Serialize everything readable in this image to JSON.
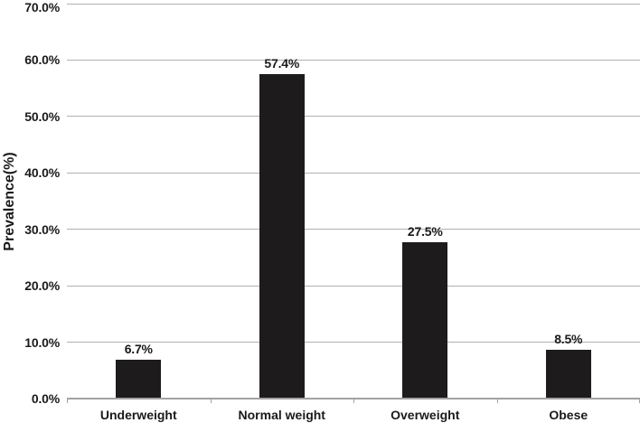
{
  "chart_data": {
    "type": "bar",
    "title": "",
    "categories": [
      "Underweight",
      "Normal weight",
      "Overweight",
      "Obese"
    ],
    "values": [
      6.7,
      57.4,
      27.5,
      8.5
    ],
    "data_labels": [
      "6.7%",
      "57.4%",
      "27.5%",
      "8.5%"
    ],
    "xlabel": "",
    "ylabel": "Prevalence(%)",
    "ylim": [
      0,
      70
    ],
    "ytick_step": 10,
    "ytick_labels": [
      "0.0%",
      "10.0%",
      "20.0%",
      "30.0%",
      "40.0%",
      "50.0%",
      "60.0%",
      "70.0%"
    ],
    "grid": true,
    "legend": false,
    "colors": {
      "bar": "#1d1b1b",
      "gridline": "#b0b0b0",
      "axis": "#a3a3a3",
      "text": "#1a1a1a",
      "background": "#ffffff"
    }
  }
}
